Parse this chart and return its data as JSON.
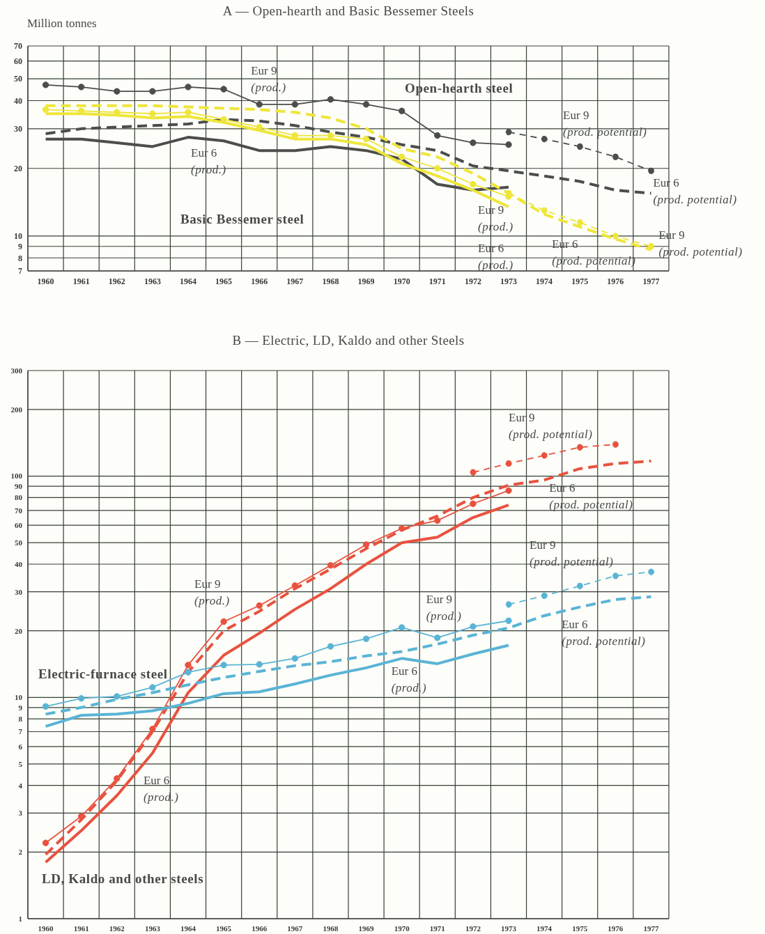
{
  "chart_data": [
    {
      "type": "line",
      "title": "A — Open-hearth and Basic Bessemer Steels",
      "ylabel": "Million tonnes",
      "categories": [
        "1960",
        "1961",
        "1962",
        "1963",
        "1964",
        "1965",
        "1966",
        "1967",
        "1968",
        "1969",
        "1970",
        "1971",
        "1972",
        "1973",
        "1974",
        "1975",
        "1976",
        "1977"
      ],
      "log": true,
      "grid": true,
      "ylim": [
        7,
        70
      ],
      "yticks": [
        7,
        8,
        9,
        10,
        20,
        30,
        40,
        50,
        60,
        70
      ],
      "annotations": [
        "Open-hearth steel",
        "Basic Bessemer steel"
      ],
      "series": [
        {
          "name": "Eur 9 (prod.)",
          "color": "#4b4e4b",
          "marker": "circle",
          "line_style": "solid",
          "values": [
            47,
            46,
            44,
            44,
            46,
            45,
            38.5,
            38.5,
            40.5,
            38.5,
            36,
            28,
            26,
            25.5,
            null,
            null,
            null,
            null
          ]
        },
        {
          "name": "Eur 6 (prod.)",
          "color": "#4b4e4b",
          "marker": "none",
          "line_style": "solid",
          "values": [
            27,
            27,
            26,
            25,
            27.5,
            26.5,
            24,
            24,
            25,
            24,
            22,
            17,
            16,
            16.5,
            null,
            null,
            null,
            null
          ]
        },
        {
          "name": "Eur 9 (prod. potential)",
          "color": "#4b4e4b",
          "marker": "circle",
          "line_style": "dashed",
          "values": [
            null,
            null,
            null,
            null,
            null,
            null,
            null,
            null,
            null,
            null,
            null,
            null,
            null,
            29,
            27,
            25,
            22.5,
            19.5
          ]
        },
        {
          "name": "Eur 6 (prod. potential)",
          "color": "#4b4e4b",
          "marker": "none",
          "line_style": "dashed",
          "values": [
            28.5,
            30,
            30.5,
            31,
            31.5,
            33,
            32.5,
            31,
            29,
            27.5,
            25.5,
            24,
            20.5,
            19.5,
            18.5,
            17.5,
            16,
            15.5
          ]
        },
        {
          "name": "Eur 9 (prod.)",
          "color": "#eee63a",
          "marker": "circle",
          "line_style": "solid",
          "values": [
            36.5,
            36,
            35.5,
            35,
            35.5,
            33,
            30.5,
            28,
            28,
            27,
            22.5,
            20,
            17,
            15,
            null,
            null,
            null,
            null
          ]
        },
        {
          "name": "Eur 6 (prod.)",
          "color": "#eee63a",
          "marker": "none",
          "line_style": "solid",
          "values": [
            35,
            35,
            34.5,
            33.5,
            34,
            32,
            29.5,
            27,
            27,
            25.5,
            21,
            18.5,
            16,
            13.5,
            null,
            null,
            null,
            null
          ]
        },
        {
          "name": "Eur 6 (prod. potential)",
          "color": "#eee63a",
          "marker": "none",
          "line_style": "dashed",
          "values": [
            38,
            38,
            38,
            38,
            37.5,
            37,
            36.5,
            35.5,
            33.5,
            30,
            24.5,
            22.5,
            19,
            15.5,
            12.5,
            11,
            9.7,
            8.7
          ]
        },
        {
          "name": "Eur 9 (prod. potential)",
          "color": "#eee63a",
          "marker": "circle",
          "line_style": "dashed",
          "values": [
            null,
            null,
            null,
            null,
            null,
            null,
            null,
            null,
            null,
            null,
            null,
            null,
            null,
            15.5,
            13,
            11.5,
            10,
            9
          ]
        }
      ]
    },
    {
      "type": "line",
      "title": "B — Electric, LD, Kaldo and other Steels",
      "categories": [
        "1960",
        "1961",
        "1962",
        "1963",
        "1964",
        "1965",
        "1966",
        "1967",
        "1968",
        "1969",
        "1970",
        "1971",
        "1972",
        "1973",
        "1974",
        "1975",
        "1976",
        "1977"
      ],
      "log": true,
      "grid": true,
      "ylim": [
        1,
        300
      ],
      "yticks": [
        1,
        2,
        3,
        4,
        5,
        6,
        7,
        8,
        9,
        10,
        20,
        30,
        40,
        50,
        60,
        70,
        80,
        90,
        100,
        200,
        300
      ],
      "annotations": [
        "Electric-furnace steel",
        "LD, Kaldo and other steels"
      ],
      "series": [
        {
          "name": "Eur 9 (prod.)",
          "color": "#e8523f",
          "marker": "circle",
          "line_style": "solid",
          "values": [
            2.2,
            2.9,
            4.3,
            7.2,
            14,
            22,
            26,
            32,
            39.5,
            49,
            58,
            63,
            75,
            86,
            null,
            null,
            null,
            null
          ]
        },
        {
          "name": "Eur 6 (prod.)",
          "color": "#e8523f",
          "marker": "none",
          "line_style": "solid",
          "values": [
            1.8,
            2.5,
            3.6,
            5.6,
            10.5,
            15.5,
            19.5,
            25,
            31,
            40,
            50,
            53,
            65,
            74,
            null,
            null,
            null,
            null
          ]
        },
        {
          "name": "Eur 6 (prod. potential)",
          "color": "#e8523f",
          "marker": "none",
          "line_style": "dashed",
          "values": [
            1.95,
            2.8,
            4.2,
            7,
            13,
            20,
            24.5,
            31,
            38,
            47,
            57,
            66,
            80,
            91,
            96,
            108,
            114,
            117
          ]
        },
        {
          "name": "Eur 9 (prod. potential)",
          "color": "#e8523f",
          "marker": "circle",
          "line_style": "dashed",
          "values": [
            null,
            null,
            null,
            null,
            null,
            null,
            null,
            null,
            null,
            null,
            null,
            null,
            104,
            114,
            124,
            135,
            139,
            null
          ]
        },
        {
          "name": "Eur 9 (prod.)",
          "color": "#5ab4d6",
          "marker": "circle",
          "line_style": "solid",
          "values": [
            9.1,
            9.9,
            10.1,
            11.1,
            13,
            14,
            14.1,
            15,
            17,
            18.4,
            20.7,
            18.6,
            20.9,
            22.2,
            null,
            null,
            null,
            null
          ]
        },
        {
          "name": "Eur 6 (prod.)",
          "color": "#5ab4d6",
          "marker": "none",
          "line_style": "solid",
          "values": [
            7.4,
            8.3,
            8.4,
            8.7,
            9.4,
            10.4,
            10.6,
            11.5,
            12.6,
            13.6,
            15,
            14.2,
            15.7,
            17.2,
            null,
            null,
            null,
            null
          ]
        },
        {
          "name": "Eur 6 (prod. potential)",
          "color": "#5ab4d6",
          "marker": "none",
          "line_style": "dashed",
          "values": [
            8.4,
            9,
            9.8,
            10.5,
            11.4,
            12.3,
            13.1,
            13.9,
            14.5,
            15.4,
            16.1,
            17.4,
            19.1,
            20.6,
            23.4,
            25.6,
            27.7,
            28.5
          ]
        },
        {
          "name": "Eur 9 (prod. potential)",
          "color": "#5ab4d6",
          "marker": "circle",
          "line_style": "dashed",
          "values": [
            null,
            null,
            null,
            null,
            null,
            null,
            null,
            null,
            null,
            null,
            null,
            null,
            null,
            26.3,
            28.8,
            31.9,
            35.4,
            36.9
          ]
        }
      ]
    }
  ]
}
